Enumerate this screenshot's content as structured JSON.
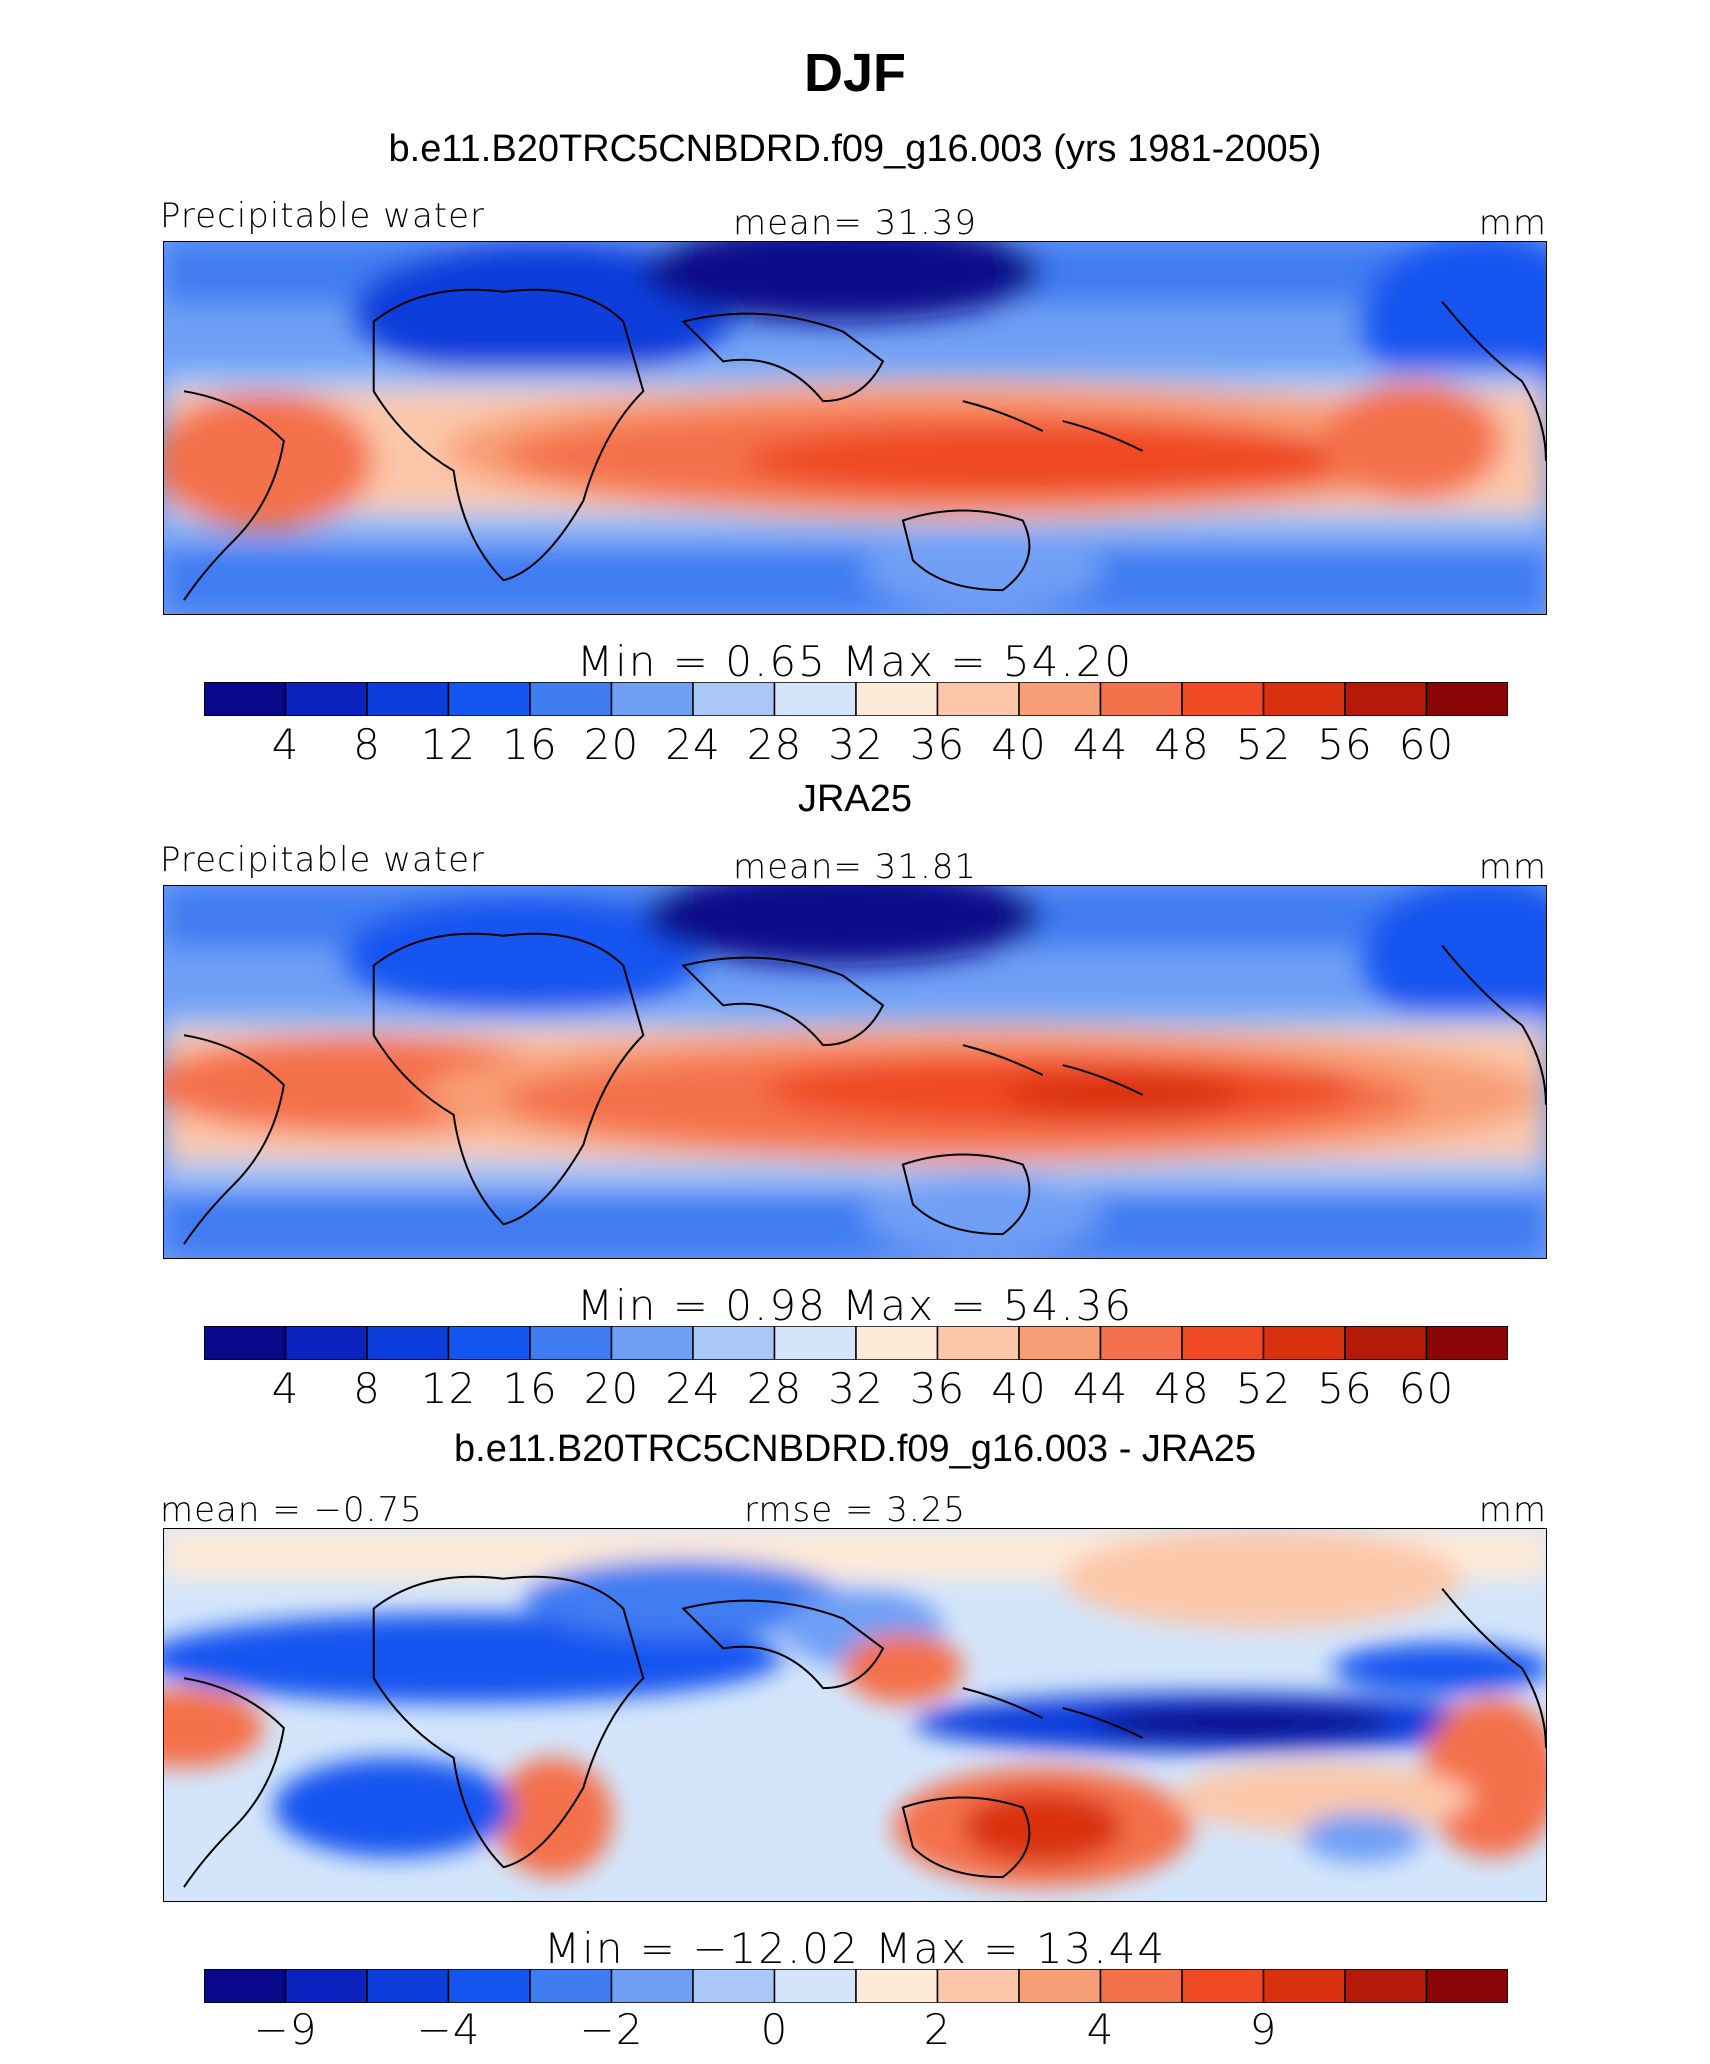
{
  "title": "DJF",
  "colors": [
    "#08088a",
    "#0b22bf",
    "#0d3ddb",
    "#1555f0",
    "#3f7cf2",
    "#6f9ff5",
    "#a9c8f8",
    "#d3e5fb",
    "#feead8",
    "#fcc7aa",
    "#f89e76",
    "#f4714b",
    "#ef4a24",
    "#d9300f",
    "#b31a0a",
    "#8a0606"
  ],
  "panels": [
    {
      "subtitle": "b.e11.B20TRC5CNBDRD.f09_g16.003 (yrs 1981-2005)",
      "left_label": "Precipitable water",
      "center_label": "mean=   31.39",
      "unit": "mm",
      "minmax": "Min  =     0.65  Max  =    54.20",
      "ticks": [
        "4",
        "8",
        "12",
        "16",
        "20",
        "24",
        "28",
        "32",
        "36",
        "40",
        "44",
        "48",
        "52",
        "56",
        "60"
      ]
    },
    {
      "subtitle": "JRA25",
      "left_label": "Precipitable water",
      "center_label": "mean=   31.81",
      "unit": "mm",
      "minmax": "Min  =     0.98  Max  =    54.36",
      "ticks": [
        "4",
        "8",
        "12",
        "16",
        "20",
        "24",
        "28",
        "32",
        "36",
        "40",
        "44",
        "48",
        "52",
        "56",
        "60"
      ]
    },
    {
      "subtitle": "b.e11.B20TRC5CNBDRD.f09_g16.003 - JRA25",
      "left_label": "mean =   −0.75",
      "center_label": "rmse =     3.25",
      "unit": "mm",
      "minmax": "Min  =  −12.02  Max  =    13.44",
      "ticks": [
        "−9",
        "",
        "−4",
        "",
        "−2",
        "",
        "0",
        "",
        "2",
        "",
        "4",
        "",
        "9",
        "",
        ""
      ]
    }
  ],
  "chart_data": [
    {
      "type": "heatmap",
      "title": "DJF",
      "subtitle": "b.e11.B20TRC5CNBDRD.f09_g16.003 (yrs 1981-2005)",
      "variable": "Precipitable water",
      "units": "mm",
      "mean": 31.39,
      "min": 0.65,
      "max": 54.2,
      "contour_levels": [
        4,
        8,
        12,
        16,
        20,
        24,
        28,
        32,
        36,
        40,
        44,
        48,
        52,
        56,
        60
      ]
    },
    {
      "type": "heatmap",
      "title": "DJF",
      "subtitle": "JRA25",
      "variable": "Precipitable water",
      "units": "mm",
      "mean": 31.81,
      "min": 0.98,
      "max": 54.36,
      "contour_levels": [
        4,
        8,
        12,
        16,
        20,
        24,
        28,
        32,
        36,
        40,
        44,
        48,
        52,
        56,
        60
      ]
    },
    {
      "type": "heatmap",
      "title": "DJF",
      "subtitle": "b.e11.B20TRC5CNBDRD.f09_g16.003 - JRA25",
      "units": "mm",
      "mean": -0.75,
      "rmse": 3.25,
      "min": -12.02,
      "max": 13.44,
      "contour_level_labels": [
        -9,
        -4,
        -2,
        0,
        2,
        4,
        9
      ]
    }
  ]
}
